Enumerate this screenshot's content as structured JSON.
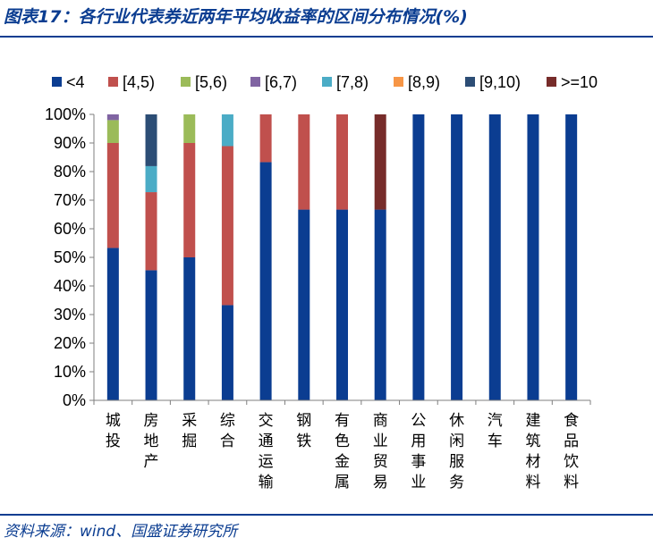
{
  "header": {
    "title": "图表17：各行业代表券近两年平均收益率的区间分布情况(%)"
  },
  "footer": {
    "source": "资料来源：wind、国盛证券研究所"
  },
  "chart_data": {
    "type": "bar",
    "stacked": true,
    "categories": [
      "城投",
      "房地产",
      "采掘",
      "综合",
      "交通运输",
      "钢铁",
      "有色金属",
      "商业贸易",
      "公用事业",
      "休闲服务",
      "汽车",
      "建筑材料",
      "食品饮料"
    ],
    "series": [
      {
        "name": "<4",
        "color": "#0b3d91",
        "values": [
          53.3,
          45.5,
          50,
          33.3,
          83.3,
          66.7,
          66.7,
          66.7,
          100,
          100,
          100,
          100,
          100
        ]
      },
      {
        "name": "[4,5)",
        "color": "#c0504d",
        "values": [
          36.7,
          27.3,
          40,
          55.6,
          16.7,
          33.3,
          33.3,
          0,
          0,
          0,
          0,
          0,
          0
        ]
      },
      {
        "name": "[5,6)",
        "color": "#9bbb59",
        "values": [
          8,
          0,
          10,
          0,
          0,
          0,
          0,
          0,
          0,
          0,
          0,
          0,
          0
        ]
      },
      {
        "name": "[6,7)",
        "color": "#8064a2",
        "values": [
          2,
          0,
          0,
          0,
          0,
          0,
          0,
          0,
          0,
          0,
          0,
          0,
          0
        ]
      },
      {
        "name": "[7,8)",
        "color": "#4bacc6",
        "values": [
          0,
          9.1,
          0,
          11.1,
          0,
          0,
          0,
          0,
          0,
          0,
          0,
          0,
          0
        ]
      },
      {
        "name": "[8,9)",
        "color": "#f79646",
        "values": [
          0,
          0,
          0,
          0,
          0,
          0,
          0,
          0,
          0,
          0,
          0,
          0,
          0
        ]
      },
      {
        "name": "[9,10)",
        "color": "#2c4d75",
        "values": [
          0,
          18.1,
          0,
          0,
          0,
          0,
          0,
          0,
          0,
          0,
          0,
          0,
          0
        ]
      },
      {
        "name": ">=10",
        "color": "#772c2a",
        "values": [
          0,
          0,
          0,
          0,
          0,
          0,
          0,
          33.3,
          0,
          0,
          0,
          0,
          0
        ]
      }
    ],
    "ylim": [
      0,
      100
    ],
    "yticks": [
      "0%",
      "10%",
      "20%",
      "30%",
      "40%",
      "50%",
      "60%",
      "70%",
      "80%",
      "90%",
      "100%"
    ],
    "legend": "top",
    "grid": false
  }
}
